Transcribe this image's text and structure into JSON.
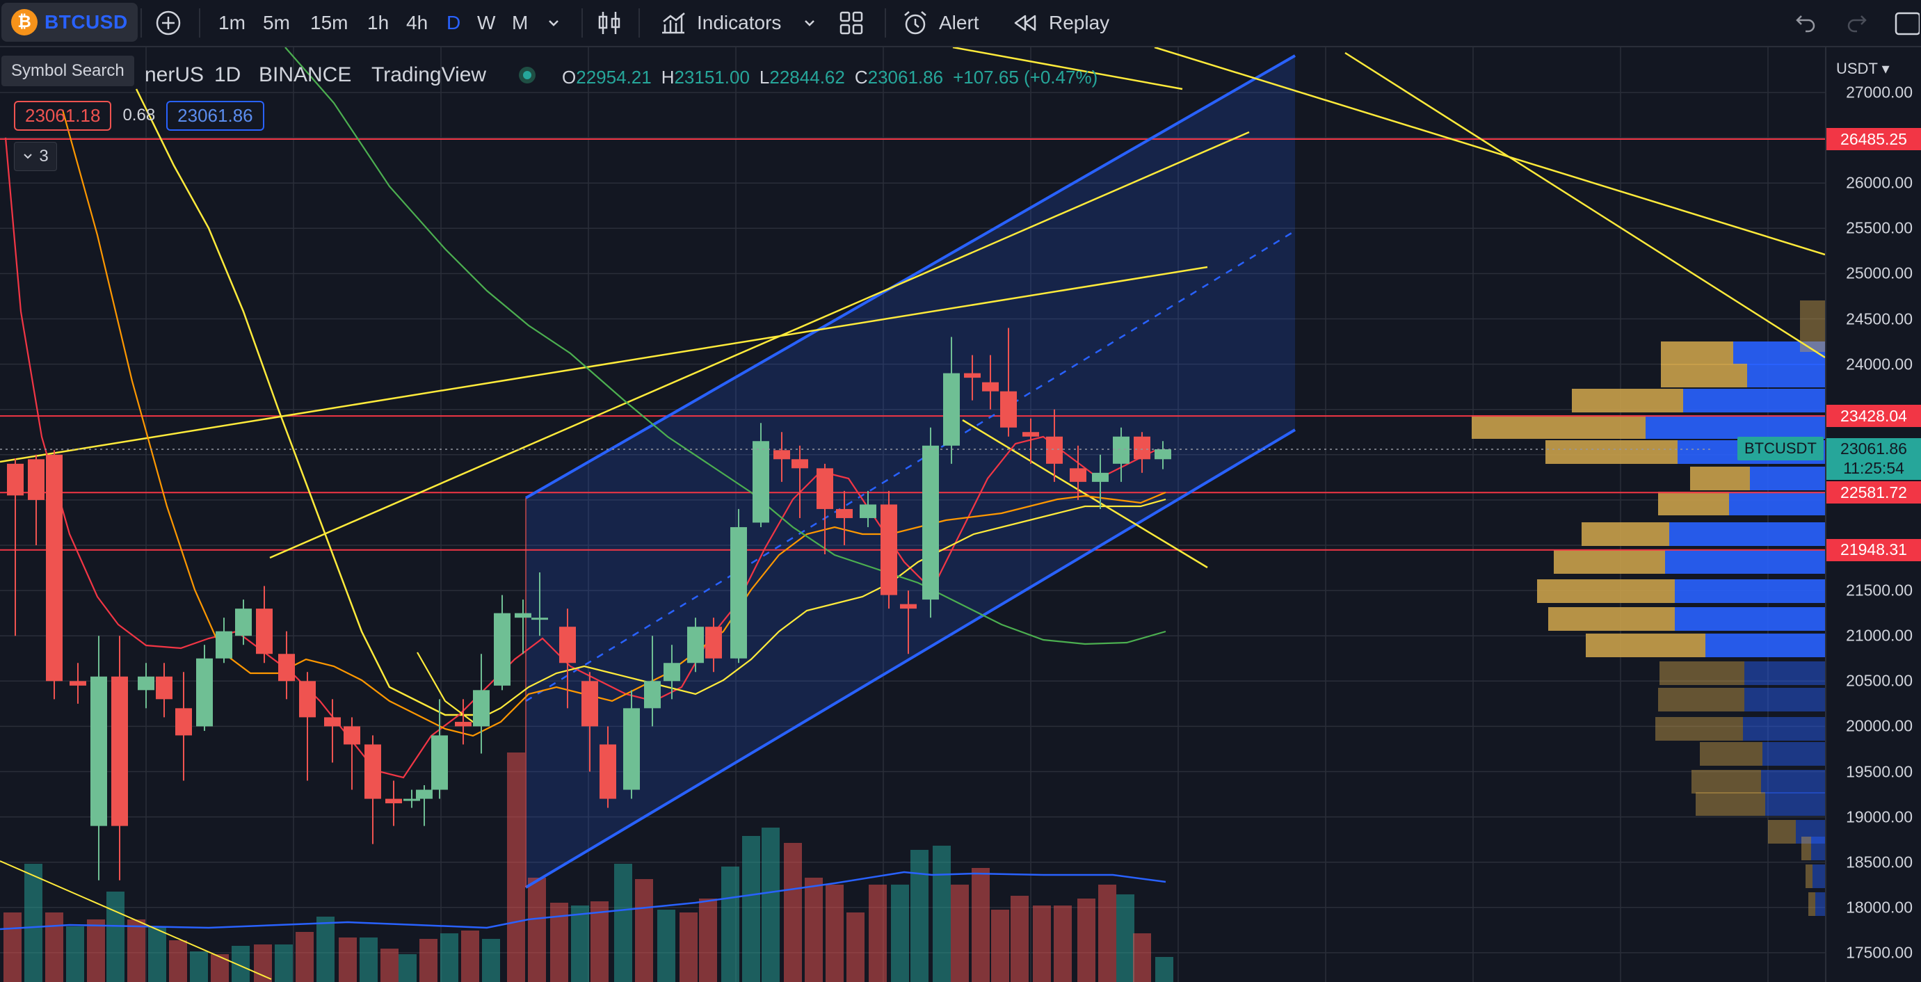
{
  "toolbar": {
    "symbol": "BTCUSD",
    "symbol_coin": "₿",
    "timeframes": [
      "1m",
      "5m",
      "15m",
      "1h",
      "4h",
      "D",
      "W",
      "M"
    ],
    "active_timeframe": "D",
    "indicators_label": "Indicators",
    "alert_label": "Alert",
    "replay_label": "Replay"
  },
  "tooltip": "Symbol Search",
  "legend": {
    "symbol_partial": "nerUS",
    "interval": "1D",
    "exchange": "BINANCE",
    "source": "TradingView"
  },
  "ohlc": {
    "o_key": "O",
    "o": "22954.21",
    "h_key": "H",
    "h": "23151.00",
    "l_key": "L",
    "l": "22844.62",
    "c_key": "C",
    "c": "23061.86",
    "change": "+107.65 (+0.47%)"
  },
  "price_boxes": {
    "bid": "23061.18",
    "spread": "0.68",
    "ask": "23061.86"
  },
  "collapse_count": "3",
  "axis": {
    "currency": "USDT",
    "ticks": [
      "27000.00",
      "26000.00",
      "25500.00",
      "25000.00",
      "24500.00",
      "24000.00",
      "21500.00",
      "21000.00",
      "20500.00",
      "20000.00",
      "19500.00",
      "19000.00",
      "18500.00",
      "18000.00",
      "17500.00"
    ],
    "tick_values": [
      27000,
      26000,
      25500,
      25000,
      24500,
      24000,
      21500,
      21000,
      20500,
      20000,
      19500,
      19000,
      18500,
      18000,
      17500
    ],
    "price_lines": [
      {
        "label": "26485.25",
        "value": 26485.25,
        "color": "#f23645"
      },
      {
        "label": "23428.04",
        "value": 23428.04,
        "color": "#f23645"
      },
      {
        "label": "22581.72",
        "value": 22581.72,
        "color": "#f23645"
      },
      {
        "label": "21948.31",
        "value": 21948.31,
        "color": "#f23645"
      }
    ],
    "last_price": "23061.86",
    "countdown": "11:25:54",
    "symbol_tag": "BTCUSDT"
  },
  "colors": {
    "up": "#26a69a",
    "up_fill": "#6fbf94",
    "down": "#ef5350",
    "channel": "#2962ff",
    "trendline": "#ffeb3b",
    "background": "#131722"
  }
}
